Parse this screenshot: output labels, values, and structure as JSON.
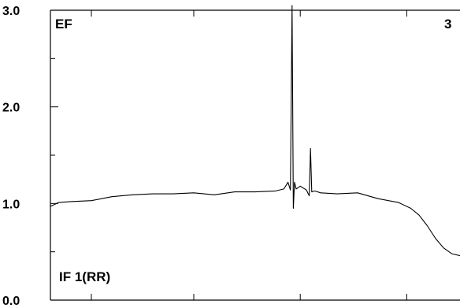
{
  "chart_data": {
    "type": "line",
    "title": "",
    "xlabel": "",
    "ylabel": "",
    "ylim": [
      0.0,
      3.0
    ],
    "y_ticks": [
      "0.0",
      "1.0",
      "2.0",
      "3.0"
    ],
    "annotations": {
      "top_left": "EF",
      "top_right": "3",
      "bottom_left": "IF 1(RR)"
    },
    "series": [
      {
        "color": "#000000",
        "x": [
          0,
          2,
          5,
          10,
          15,
          20,
          25,
          30,
          35,
          40,
          45,
          50,
          55,
          57,
          58,
          58.6,
          59,
          59.3,
          59.6,
          60,
          61,
          62.5,
          63.2,
          63.5,
          63.8,
          64.5,
          66,
          70,
          75,
          80,
          85,
          88,
          90,
          92,
          94,
          96,
          98,
          100
        ],
        "y": [
          0.97,
          1.01,
          1.02,
          1.03,
          1.07,
          1.09,
          1.1,
          1.1,
          1.11,
          1.09,
          1.12,
          1.12,
          1.13,
          1.15,
          1.22,
          1.14,
          3.05,
          0.95,
          1.22,
          1.15,
          1.18,
          1.14,
          1.08,
          1.57,
          1.12,
          1.13,
          1.11,
          1.1,
          1.11,
          1.05,
          1.01,
          0.95,
          0.88,
          0.77,
          0.64,
          0.54,
          0.48,
          0.46
        ]
      }
    ]
  }
}
